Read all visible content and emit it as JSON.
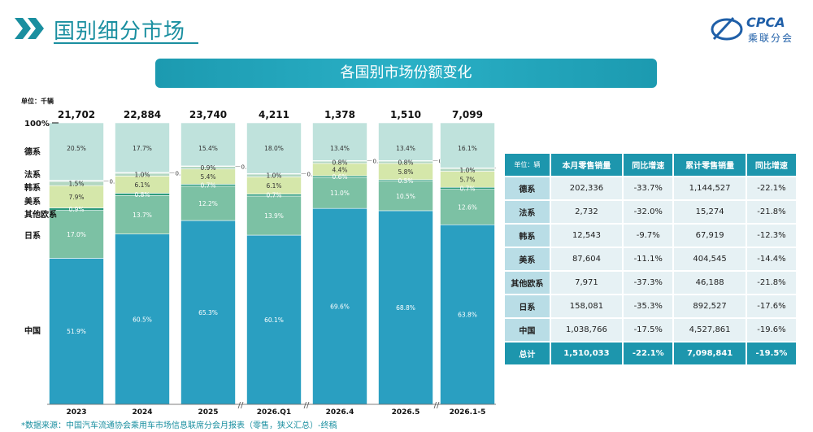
{
  "header": {
    "title": "国别细分市场",
    "banner": "各国别市场份额变化",
    "logo_text": "CPCA",
    "logo_sub": "乘联分会"
  },
  "chart_data": {
    "type": "bar",
    "stacked": true,
    "percent_scale": "100%",
    "unit": "单位：千辆",
    "categories": [
      "2023",
      "2024",
      "2025",
      "2026.Q1",
      "2026.4",
      "2026.5",
      "2026.1-5"
    ],
    "totals": [
      "21,702",
      "22,884",
      "23,740",
      "4,211",
      "1,378",
      "1,510",
      "7,099"
    ],
    "series": [
      {
        "name": "中国",
        "color": "#2a9fc1",
        "values": [
          51.9,
          60.5,
          65.3,
          60.1,
          69.6,
          68.8,
          63.8
        ]
      },
      {
        "name": "日系",
        "color": "#7cc1a4",
        "values": [
          17.0,
          13.7,
          12.2,
          13.9,
          11.0,
          10.5,
          12.6
        ]
      },
      {
        "name": "其他欧系",
        "color": "#2b9a7c",
        "values": [
          0.9,
          0.8,
          0.7,
          0.7,
          0.6,
          0.5,
          0.7
        ]
      },
      {
        "name": "美系",
        "color": "#d5e7aa",
        "values": [
          7.9,
          6.1,
          5.4,
          6.1,
          4.4,
          5.8,
          5.7
        ]
      },
      {
        "name": "韩系",
        "color": "#b3d7c2",
        "values": [
          null,
          null,
          null,
          null,
          null,
          null,
          null
        ]
      },
      {
        "name": "法系",
        "color": "#e8f2ef",
        "values": [
          0.4,
          0.3,
          0.2,
          0.2,
          0.2,
          0.2,
          0.2
        ]
      },
      {
        "name": "德系",
        "color": "#bfe2dc",
        "values": [
          20.5,
          17.7,
          15.4,
          18.0,
          13.4,
          13.4,
          16.1
        ]
      }
    ],
    "korean_labels": [
      "1.5%",
      "1.0%",
      "0.9%",
      "1.0%",
      "0.8%",
      "0.8%",
      "1.0%"
    ],
    "korean_values": [
      1.5,
      1.0,
      0.9,
      1.0,
      0.8,
      0.8,
      1.0
    ],
    "legend_labels": [
      "100%",
      "德系",
      "法系",
      "韩系",
      "美系",
      "其他欧系",
      "日系",
      "中国"
    ]
  },
  "table": {
    "headers": [
      "单位：辆",
      "本月零售销量",
      "同比增速",
      "累计零售销量",
      "同比增速"
    ],
    "rows": [
      [
        "德系",
        "202,336",
        "-33.7%",
        "1,144,527",
        "-22.1%"
      ],
      [
        "法系",
        "2,732",
        "-32.0%",
        "15,274",
        "-21.8%"
      ],
      [
        "韩系",
        "12,543",
        "-9.7%",
        "67,919",
        "-12.3%"
      ],
      [
        "美系",
        "87,604",
        "-11.1%",
        "404,545",
        "-14.4%"
      ],
      [
        "其他欧系",
        "7,971",
        "-37.3%",
        "46,188",
        "-21.8%"
      ],
      [
        "日系",
        "158,081",
        "-35.3%",
        "892,527",
        "-17.6%"
      ],
      [
        "中国",
        "1,038,766",
        "-17.5%",
        "4,527,861",
        "-19.6%"
      ]
    ],
    "total": [
      "总计",
      "1,510,033",
      "-22.1%",
      "7,098,841",
      "-19.5%"
    ]
  },
  "footer": {
    "source": "*数据来源：中国汽车流通协会乘用车市场信息联席分会月报表（零售，狭义汇总）-终稿"
  }
}
